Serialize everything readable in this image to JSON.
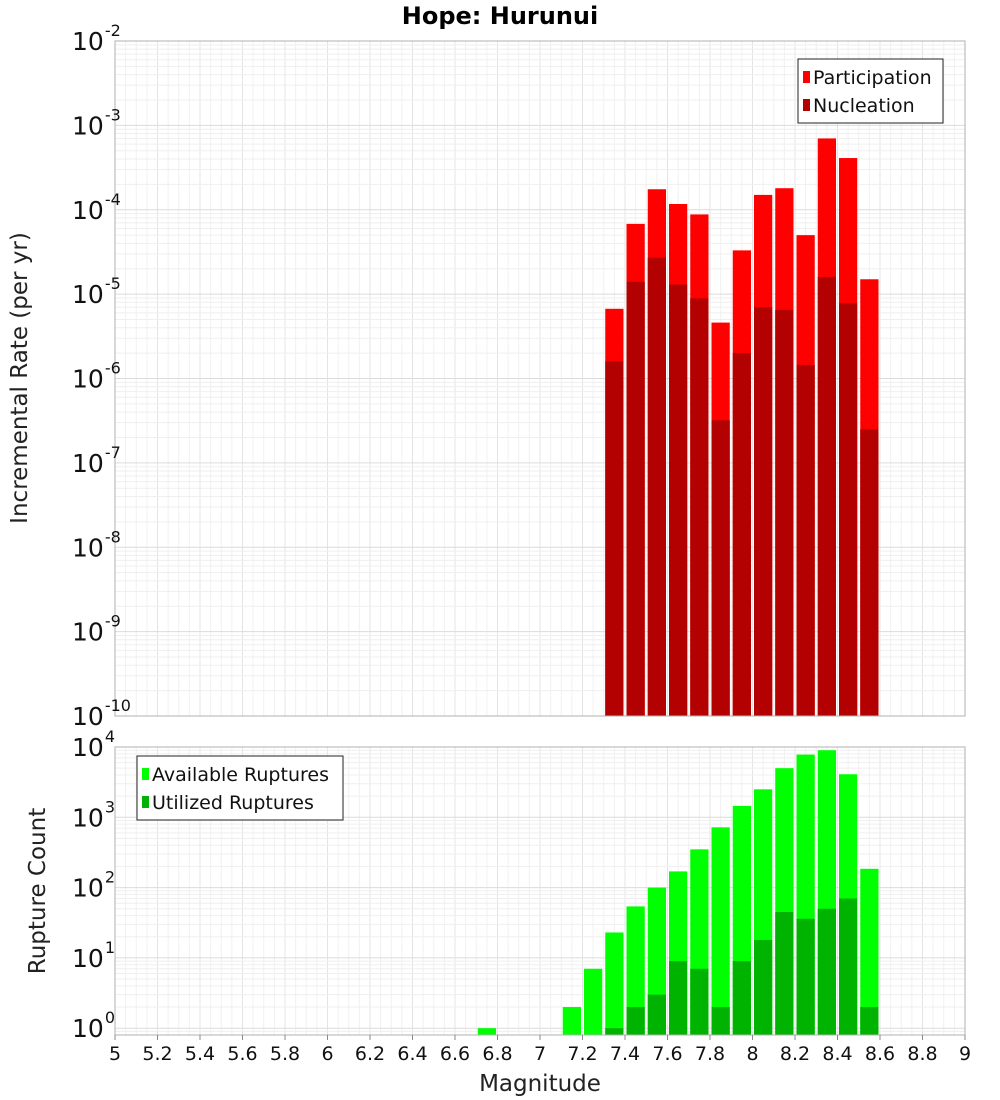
{
  "chart_data": [
    {
      "type": "bar",
      "title": "Hope: Hurunui",
      "xlabel": "Magnitude",
      "ylabel": "Incremental Rate (per yr)",
      "yscale": "log",
      "xlim": [
        5,
        9
      ],
      "ylim": [
        1e-10,
        0.01
      ],
      "y_ticks": [
        {
          "base": "10",
          "exp": "-2"
        },
        {
          "base": "10",
          "exp": "-3"
        },
        {
          "base": "10",
          "exp": "-4"
        },
        {
          "base": "10",
          "exp": "-5"
        },
        {
          "base": "10",
          "exp": "-6"
        },
        {
          "base": "10",
          "exp": "-7"
        },
        {
          "base": "10",
          "exp": "-8"
        },
        {
          "base": "10",
          "exp": "-9"
        },
        {
          "base": "10",
          "exp": "-10"
        }
      ],
      "legend_position": "top-right",
      "x": [
        7.35,
        7.45,
        7.55,
        7.65,
        7.75,
        7.85,
        7.95,
        8.05,
        8.15,
        8.25,
        8.35,
        8.45,
        8.55
      ],
      "series": [
        {
          "name": "Participation",
          "color": "#ff0000",
          "values": [
            6.7e-06,
            6.8e-05,
            0.000175,
            0.000117,
            8.8e-05,
            4.6e-06,
            3.3e-05,
            0.00015,
            0.00018,
            5e-05,
            0.0007,
            0.00041,
            1.5e-05
          ]
        },
        {
          "name": "Nucleation",
          "color": "#b30000",
          "values": [
            1.6e-06,
            1.4e-05,
            2.7e-05,
            1.3e-05,
            8.9e-06,
            3.2e-07,
            2e-06,
            7e-06,
            6.5e-06,
            1.45e-06,
            1.6e-05,
            7.8e-06,
            2.5e-07
          ]
        }
      ]
    },
    {
      "type": "bar",
      "title": "",
      "xlabel": "Magnitude",
      "ylabel": "Rupture Count",
      "yscale": "log",
      "xlim": [
        5,
        9
      ],
      "ylim": [
        0.8,
        10000
      ],
      "x_ticks": [
        "5",
        "5.2",
        "5.4",
        "5.6",
        "5.8",
        "6",
        "6.2",
        "6.4",
        "6.6",
        "6.8",
        "7",
        "7.2",
        "7.4",
        "7.6",
        "7.8",
        "8",
        "8.2",
        "8.4",
        "8.6",
        "8.8",
        "9"
      ],
      "y_ticks": [
        {
          "base": "10",
          "exp": "4"
        },
        {
          "base": "10",
          "exp": "3"
        },
        {
          "base": "10",
          "exp": "2"
        },
        {
          "base": "10",
          "exp": "1"
        },
        {
          "base": "10",
          "exp": "0"
        }
      ],
      "legend_position": "top-left",
      "x": [
        6.75,
        7.15,
        7.25,
        7.35,
        7.45,
        7.55,
        7.65,
        7.75,
        7.85,
        7.95,
        8.05,
        8.15,
        8.25,
        8.35,
        8.45,
        8.55
      ],
      "series": [
        {
          "name": "Available Ruptures",
          "color": "#00ff00",
          "values": [
            1,
            2,
            7,
            23,
            54,
            100,
            170,
            350,
            720,
            1450,
            2500,
            5000,
            7800,
            9000,
            4100,
            185
          ]
        },
        {
          "name": "Utilized Ruptures",
          "color": "#00b300",
          "values": [
            0,
            0,
            0,
            1,
            2,
            3,
            9,
            7,
            2,
            9,
            18,
            45,
            36,
            50,
            70,
            2
          ]
        }
      ]
    }
  ]
}
